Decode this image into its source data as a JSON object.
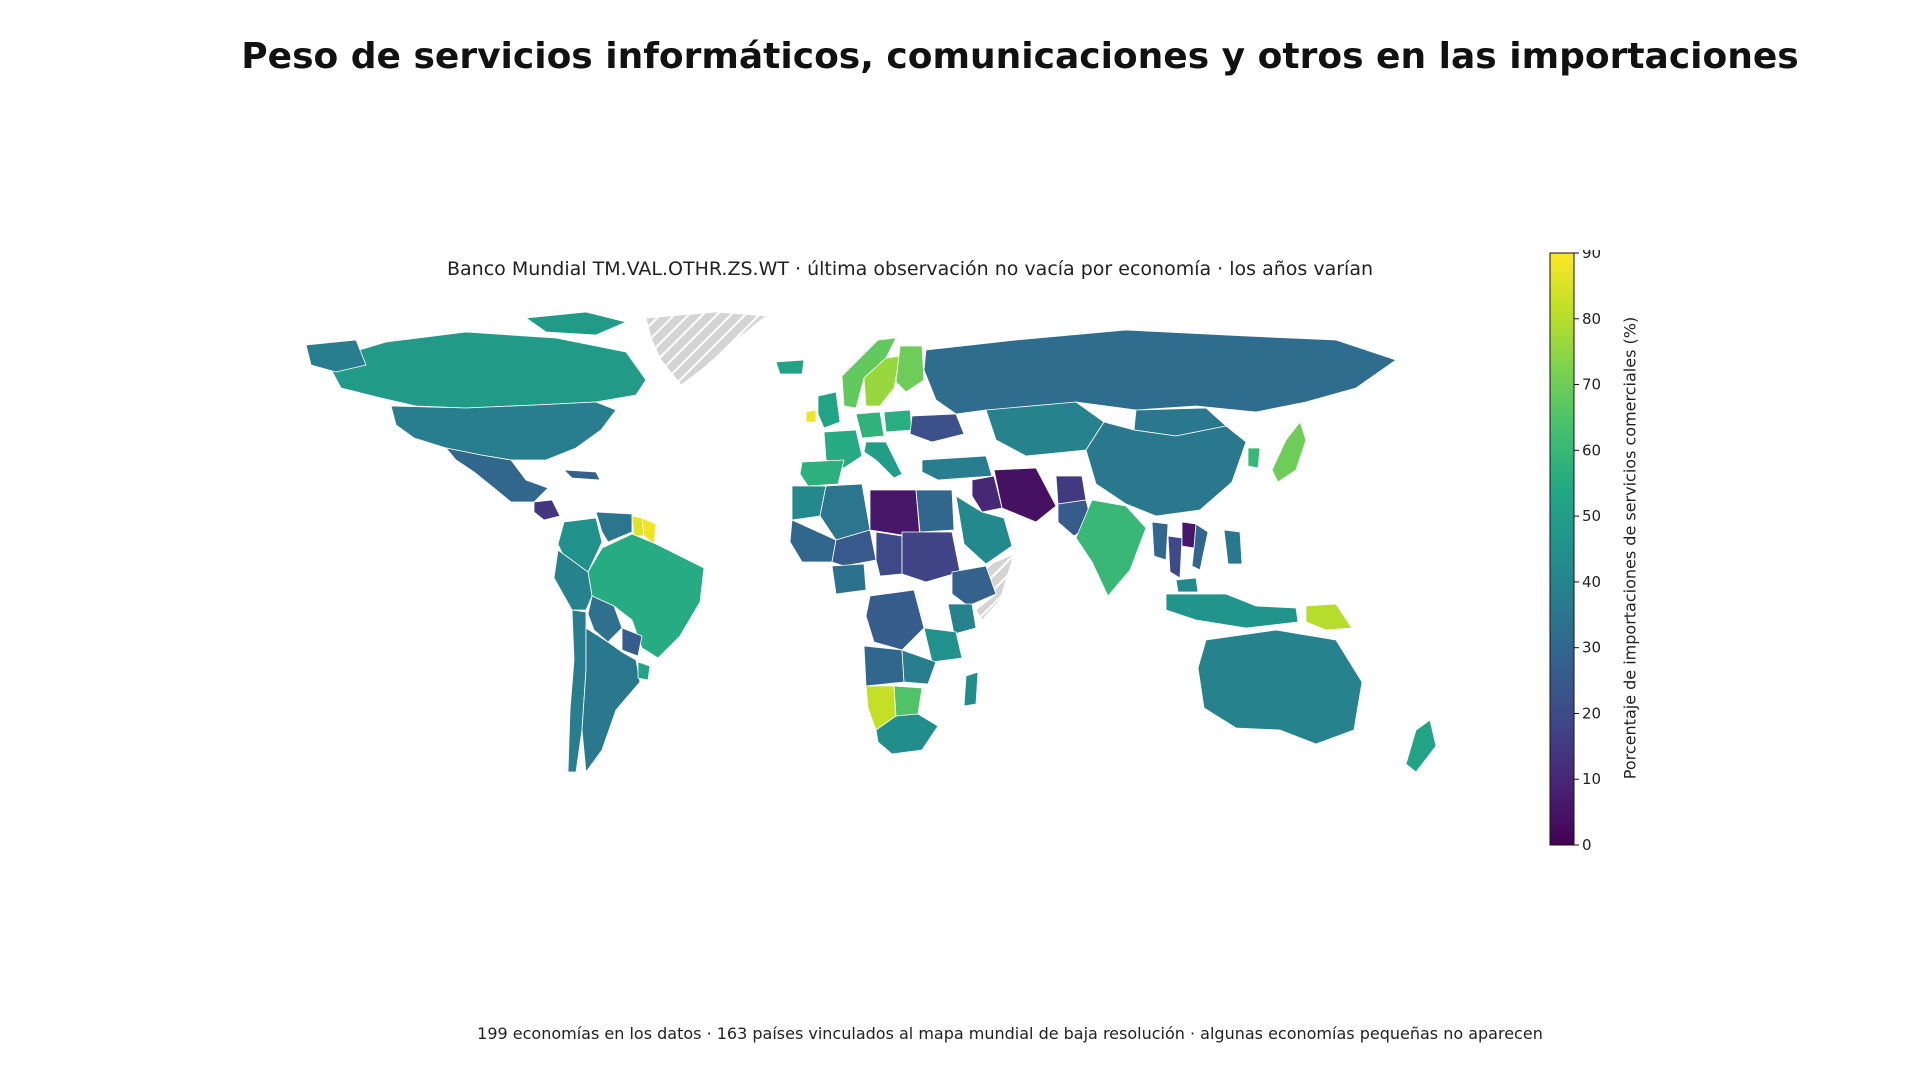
{
  "title": "Peso de servicios informáticos, comunicaciones y otros en las importaciones",
  "subtitle": "Banco Mundial TM.VAL.OTHR.ZS.WT · última observación no vacía por economía · los años varían",
  "footnote": "199 economías en los datos · 163 países vinculados al mapa mundial de baja resolución · algunas economías pequeñas no aparecen",
  "colorbar": {
    "label": "Porcentaje de importaciones de servicios comerciales (%)",
    "ticks": [
      "0",
      "10",
      "20",
      "30",
      "40",
      "50",
      "60",
      "70",
      "80",
      "90"
    ],
    "colorscale": "viridis",
    "range": [
      0,
      90
    ]
  },
  "colors": {
    "no_data": "#d4d4d4",
    "border": "#ffffff",
    "viridis": [
      "#440154",
      "#482475",
      "#414487",
      "#355f8d",
      "#2a788e",
      "#21918c",
      "#22a884",
      "#44bf70",
      "#7ad151",
      "#bddf26",
      "#fde725"
    ]
  },
  "map_data": {
    "regions": [
      {
        "name": "Canada",
        "value": 49
      },
      {
        "name": "United States",
        "value": 38
      },
      {
        "name": "Mexico",
        "value": 30
      },
      {
        "name": "Guatemala",
        "value": 14
      },
      {
        "name": "Cuba",
        "value": 28
      },
      {
        "name": "Colombia",
        "value": 45
      },
      {
        "name": "Venezuela",
        "value": 35
      },
      {
        "name": "Guyana",
        "value": 86
      },
      {
        "name": "Suriname",
        "value": 88
      },
      {
        "name": "Brazil",
        "value": 55
      },
      {
        "name": "Peru",
        "value": 40
      },
      {
        "name": "Bolivia",
        "value": 33
      },
      {
        "name": "Paraguay",
        "value": 26
      },
      {
        "name": "Chile",
        "value": 38
      },
      {
        "name": "Argentina",
        "value": 36
      },
      {
        "name": "Uruguay",
        "value": 52
      },
      {
        "name": "Greenland",
        "value": null
      },
      {
        "name": "Iceland",
        "value": 52
      },
      {
        "name": "Ireland",
        "value": 88
      },
      {
        "name": "United Kingdom",
        "value": 52
      },
      {
        "name": "Norway",
        "value": 68
      },
      {
        "name": "Sweden",
        "value": 76
      },
      {
        "name": "Finland",
        "value": 70
      },
      {
        "name": "France",
        "value": 55
      },
      {
        "name": "Spain",
        "value": 57
      },
      {
        "name": "Germany",
        "value": 58
      },
      {
        "name": "Italy",
        "value": 50
      },
      {
        "name": "Poland",
        "value": 56
      },
      {
        "name": "Ukraine",
        "value": 22
      },
      {
        "name": "Turkey",
        "value": 38
      },
      {
        "name": "Russia",
        "value": 32
      },
      {
        "name": "Kazakhstan",
        "value": 40
      },
      {
        "name": "Mongolia",
        "value": 36
      },
      {
        "name": "China",
        "value": 36
      },
      {
        "name": "Japan",
        "value": 70
      },
      {
        "name": "Korea",
        "value": 60
      },
      {
        "name": "Iran",
        "value": 4
      },
      {
        "name": "Iraq",
        "value": 10
      },
      {
        "name": "Saudi Arabia",
        "value": 42
      },
      {
        "name": "Afghanistan",
        "value": 15
      },
      {
        "name": "Pakistan",
        "value": 26
      },
      {
        "name": "India",
        "value": 60
      },
      {
        "name": "Myanmar",
        "value": 30
      },
      {
        "name": "Thailand",
        "value": 20
      },
      {
        "name": "Laos",
        "value": 6
      },
      {
        "name": "Vietnam",
        "value": 30
      },
      {
        "name": "Philippines",
        "value": 36
      },
      {
        "name": "Malaysia",
        "value": 42
      },
      {
        "name": "Indonesia",
        "value": 46
      },
      {
        "name": "Papua New Guinea",
        "value": 80
      },
      {
        "name": "Australia",
        "value": 40
      },
      {
        "name": "New Zealand",
        "value": 52
      },
      {
        "name": "Morocco",
        "value": 42
      },
      {
        "name": "Algeria",
        "value": 35
      },
      {
        "name": "Libya",
        "value": 6
      },
      {
        "name": "Egypt",
        "value": 30
      },
      {
        "name": "Mali",
        "value": 30
      },
      {
        "name": "Niger",
        "value": 25
      },
      {
        "name": "Chad",
        "value": 20
      },
      {
        "name": "Sudan",
        "value": 18
      },
      {
        "name": "Ethiopia",
        "value": 28
      },
      {
        "name": "Somalia",
        "value": null
      },
      {
        "name": "Nigeria",
        "value": 34
      },
      {
        "name": "Congo DR",
        "value": 26
      },
      {
        "name": "Kenya",
        "value": 40
      },
      {
        "name": "Tanzania",
        "value": 45
      },
      {
        "name": "Angola",
        "value": 30
      },
      {
        "name": "Zambia",
        "value": 38
      },
      {
        "name": "Namibia",
        "value": 82
      },
      {
        "name": "Botswana",
        "value": 65
      },
      {
        "name": "South Africa",
        "value": 44
      },
      {
        "name": "Madagascar",
        "value": 44
      }
    ]
  }
}
